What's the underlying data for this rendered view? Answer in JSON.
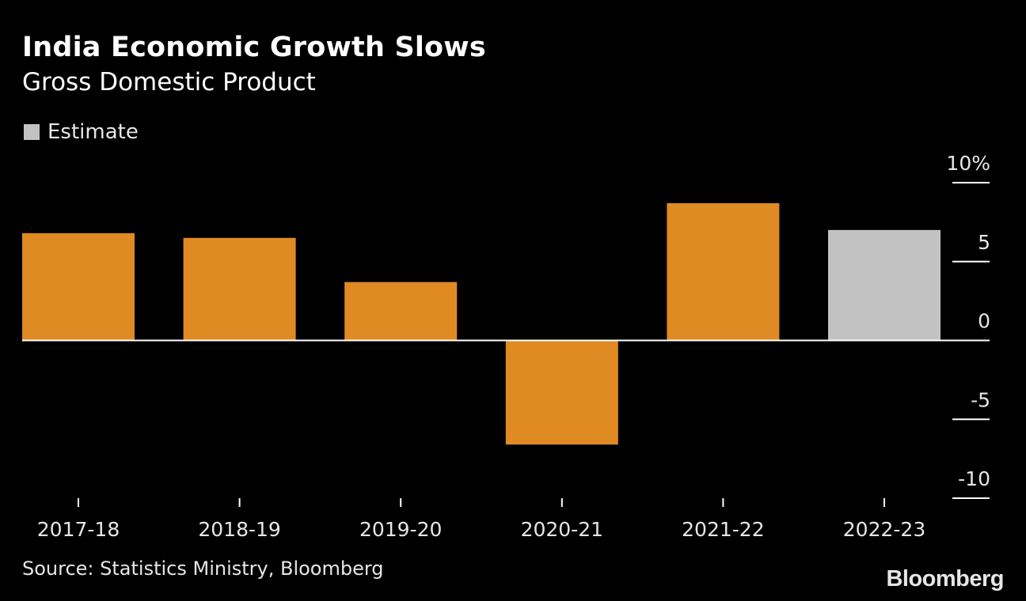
{
  "title": "India Economic Growth Slows",
  "subtitle": "Gross Domestic Product",
  "legend": [
    {
      "label": "Estimate",
      "color": "#c2c2c2"
    }
  ],
  "source": "Source: Statistics Ministry, Bloomberg",
  "logo": "Bloomberg",
  "colors": {
    "actual": "#df8a23",
    "estimate": "#c2c2c2",
    "background": "#000000",
    "text": "#e6e6e6"
  },
  "chart_data": {
    "type": "bar",
    "title": "India Economic Growth Slows",
    "subtitle": "Gross Domestic Product",
    "categories": [
      "2017-18",
      "2018-19",
      "2019-20",
      "2020-21",
      "2021-22",
      "2022-23"
    ],
    "values": [
      6.8,
      6.5,
      3.7,
      -6.6,
      8.7,
      7.0
    ],
    "estimate": [
      false,
      false,
      false,
      false,
      false,
      true
    ],
    "ylim": [
      -10,
      10
    ],
    "yticks": [
      10,
      5,
      0,
      -5,
      -10
    ],
    "ytick_labels": [
      "10%",
      "5",
      "0",
      "-5",
      "-10"
    ],
    "y_axis_position": "right",
    "grid": false
  }
}
